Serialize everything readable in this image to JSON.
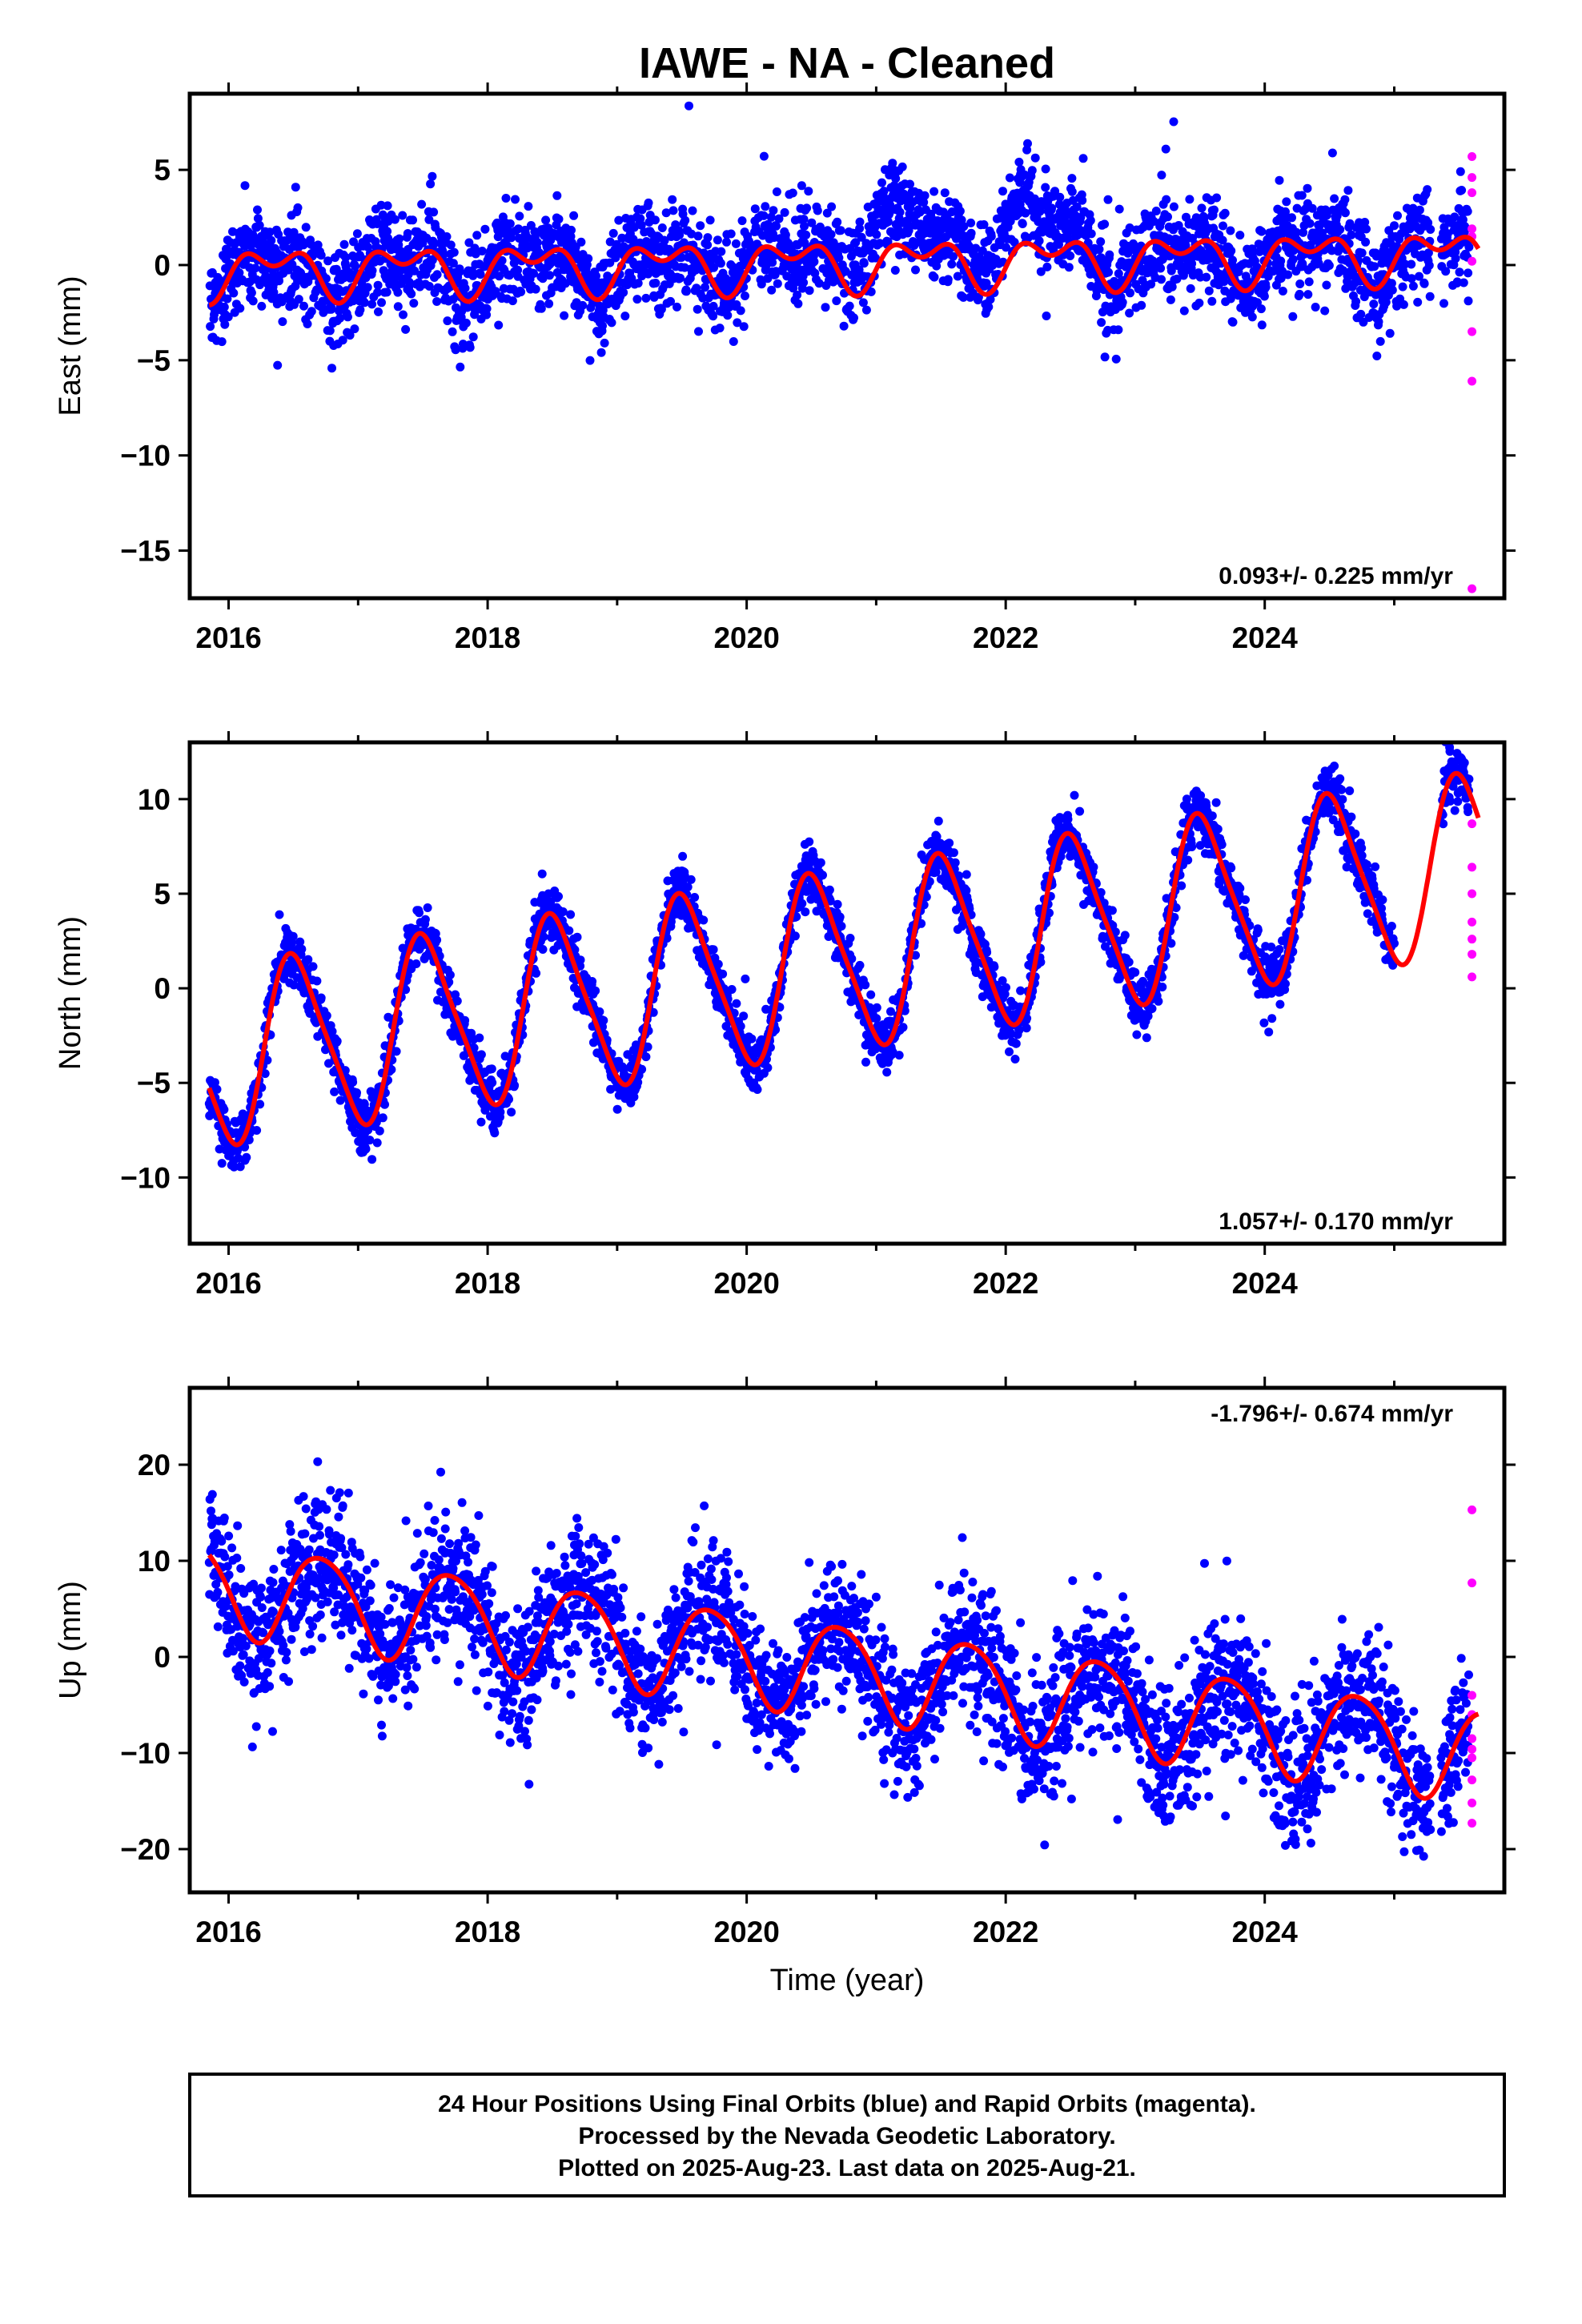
{
  "title": "IAWE  - NA - Cleaned",
  "colors": {
    "final": "#0000ff",
    "rapid": "#ff00ff",
    "model": "#ff0000",
    "frame": "#000000"
  },
  "footer": {
    "lines": [
      "24 Hour Positions Using Final Orbits (blue) and Rapid Orbits (magenta).",
      "Processed by the Nevada Geodetic Laboratory.",
      "Plotted on 2025-Aug-23. Last data on 2025-Aug-21."
    ]
  },
  "chart_data": [
    {
      "type": "scatter",
      "panel": "east",
      "ylabel": "East (mm)",
      "xlabel": "",
      "xlim": [
        2015.7,
        2025.85
      ],
      "ylim": [
        -17.5,
        9
      ],
      "x_ticks": [
        2016,
        2018,
        2020,
        2022,
        2024
      ],
      "x_tick_labels": [
        "2016",
        "2018",
        "2020",
        "2022",
        "2024"
      ],
      "y_ticks": [
        5,
        0,
        -5,
        -10,
        -15
      ],
      "y_tick_labels": [
        "5",
        "0",
        "−5",
        "−10",
        "−15"
      ],
      "rate_label": "0.093+/- 0.225 mm/yr",
      "rate_position": "bottom-right",
      "model": {
        "start": 2015.85,
        "end": 2025.65,
        "offset": -0.35,
        "trend": 0.093,
        "reference_year": 2015.85,
        "annual_amplitude": 1.0,
        "annual_phase_year": 2016.35,
        "semiannual_amplitude": 0.75,
        "semiannual_phase_year": 2016.1
      },
      "final_series": {
        "start": 2015.85,
        "end": 2025.58,
        "noise": 1.25,
        "seasonal_bumps": [
          [
            2021.1,
            2.2,
            0.35
          ],
          [
            2022.15,
            2.6,
            0.35
          ]
        ]
      },
      "gap": [
        2025.28,
        2025.36
      ],
      "rapid_points": [
        [
          2025.6,
          5.7
        ],
        [
          2025.6,
          4.6
        ],
        [
          2025.6,
          3.8
        ],
        [
          2025.6,
          1.9
        ],
        [
          2025.6,
          1.5
        ],
        [
          2025.6,
          0.2
        ],
        [
          2025.6,
          -3.5
        ],
        [
          2025.6,
          -6.1
        ],
        [
          2025.6,
          -17.0
        ]
      ]
    },
    {
      "type": "scatter",
      "panel": "north",
      "ylabel": "North (mm)",
      "xlabel": "",
      "xlim": [
        2015.7,
        2025.85
      ],
      "ylim": [
        -13.5,
        13
      ],
      "x_ticks": [
        2016,
        2018,
        2020,
        2022,
        2024
      ],
      "x_tick_labels": [
        "2016",
        "2018",
        "2020",
        "2022",
        "2024"
      ],
      "y_ticks": [
        10,
        5,
        0,
        -5,
        -10
      ],
      "y_tick_labels": [
        "10",
        "5",
        "0",
        "−5",
        "−10"
      ],
      "rate_label": "1.057+/- 0.170 mm/yr",
      "rate_position": "bottom-right",
      "model": {
        "start": 2015.85,
        "end": 2025.65,
        "offset": -3.7,
        "trend": 1.057,
        "reference_year": 2015.85,
        "annual_amplitude": 4.6,
        "annual_phase_year": 2016.52,
        "semiannual_amplitude": 0.8,
        "semiannual_phase_year": 2016.4
      },
      "final_series": {
        "start": 2015.85,
        "end": 2025.58,
        "noise": 0.75,
        "seasonal_bumps": []
      },
      "gap": [
        2025.0,
        2025.36
      ],
      "rapid_points": [
        [
          2025.6,
          8.7
        ],
        [
          2025.6,
          6.4
        ],
        [
          2025.6,
          5.0
        ],
        [
          2025.6,
          3.5
        ],
        [
          2025.6,
          2.6
        ],
        [
          2025.6,
          1.8
        ],
        [
          2025.6,
          0.6
        ]
      ]
    },
    {
      "type": "scatter",
      "panel": "up",
      "ylabel": "Up (mm)",
      "xlabel": "Time (year)",
      "xlim": [
        2015.7,
        2025.85
      ],
      "ylim": [
        -24.5,
        28
      ],
      "x_ticks": [
        2016,
        2018,
        2020,
        2022,
        2024
      ],
      "x_tick_labels": [
        "2016",
        "2018",
        "2020",
        "2022",
        "2024"
      ],
      "y_ticks": [
        20,
        10,
        0,
        -10,
        -20
      ],
      "y_tick_labels": [
        "20",
        "10",
        "0",
        "−10",
        "−20"
      ],
      "rate_label": "-1.796+/- 0.674 mm/yr",
      "rate_position": "top-right",
      "model": {
        "start": 2015.85,
        "end": 2025.65,
        "offset": 7.5,
        "trend": -1.796,
        "reference_year": 2015.85,
        "annual_amplitude": 4.8,
        "annual_phase_year": 2016.72,
        "semiannual_amplitude": 0.6,
        "semiannual_phase_year": 2016.5
      },
      "final_series": {
        "start": 2015.85,
        "end": 2025.58,
        "noise": 3.6,
        "seasonal_bumps": []
      },
      "gap": [
        2025.28,
        2025.36
      ],
      "rapid_points": [
        [
          2025.6,
          15.3
        ],
        [
          2025.6,
          7.7
        ],
        [
          2025.6,
          -4.0
        ],
        [
          2025.6,
          -6.0
        ],
        [
          2025.6,
          -8.5
        ],
        [
          2025.6,
          -9.6
        ],
        [
          2025.6,
          -10.5
        ],
        [
          2025.6,
          -12.8
        ],
        [
          2025.6,
          -15.2
        ],
        [
          2025.6,
          -17.3
        ]
      ]
    }
  ]
}
